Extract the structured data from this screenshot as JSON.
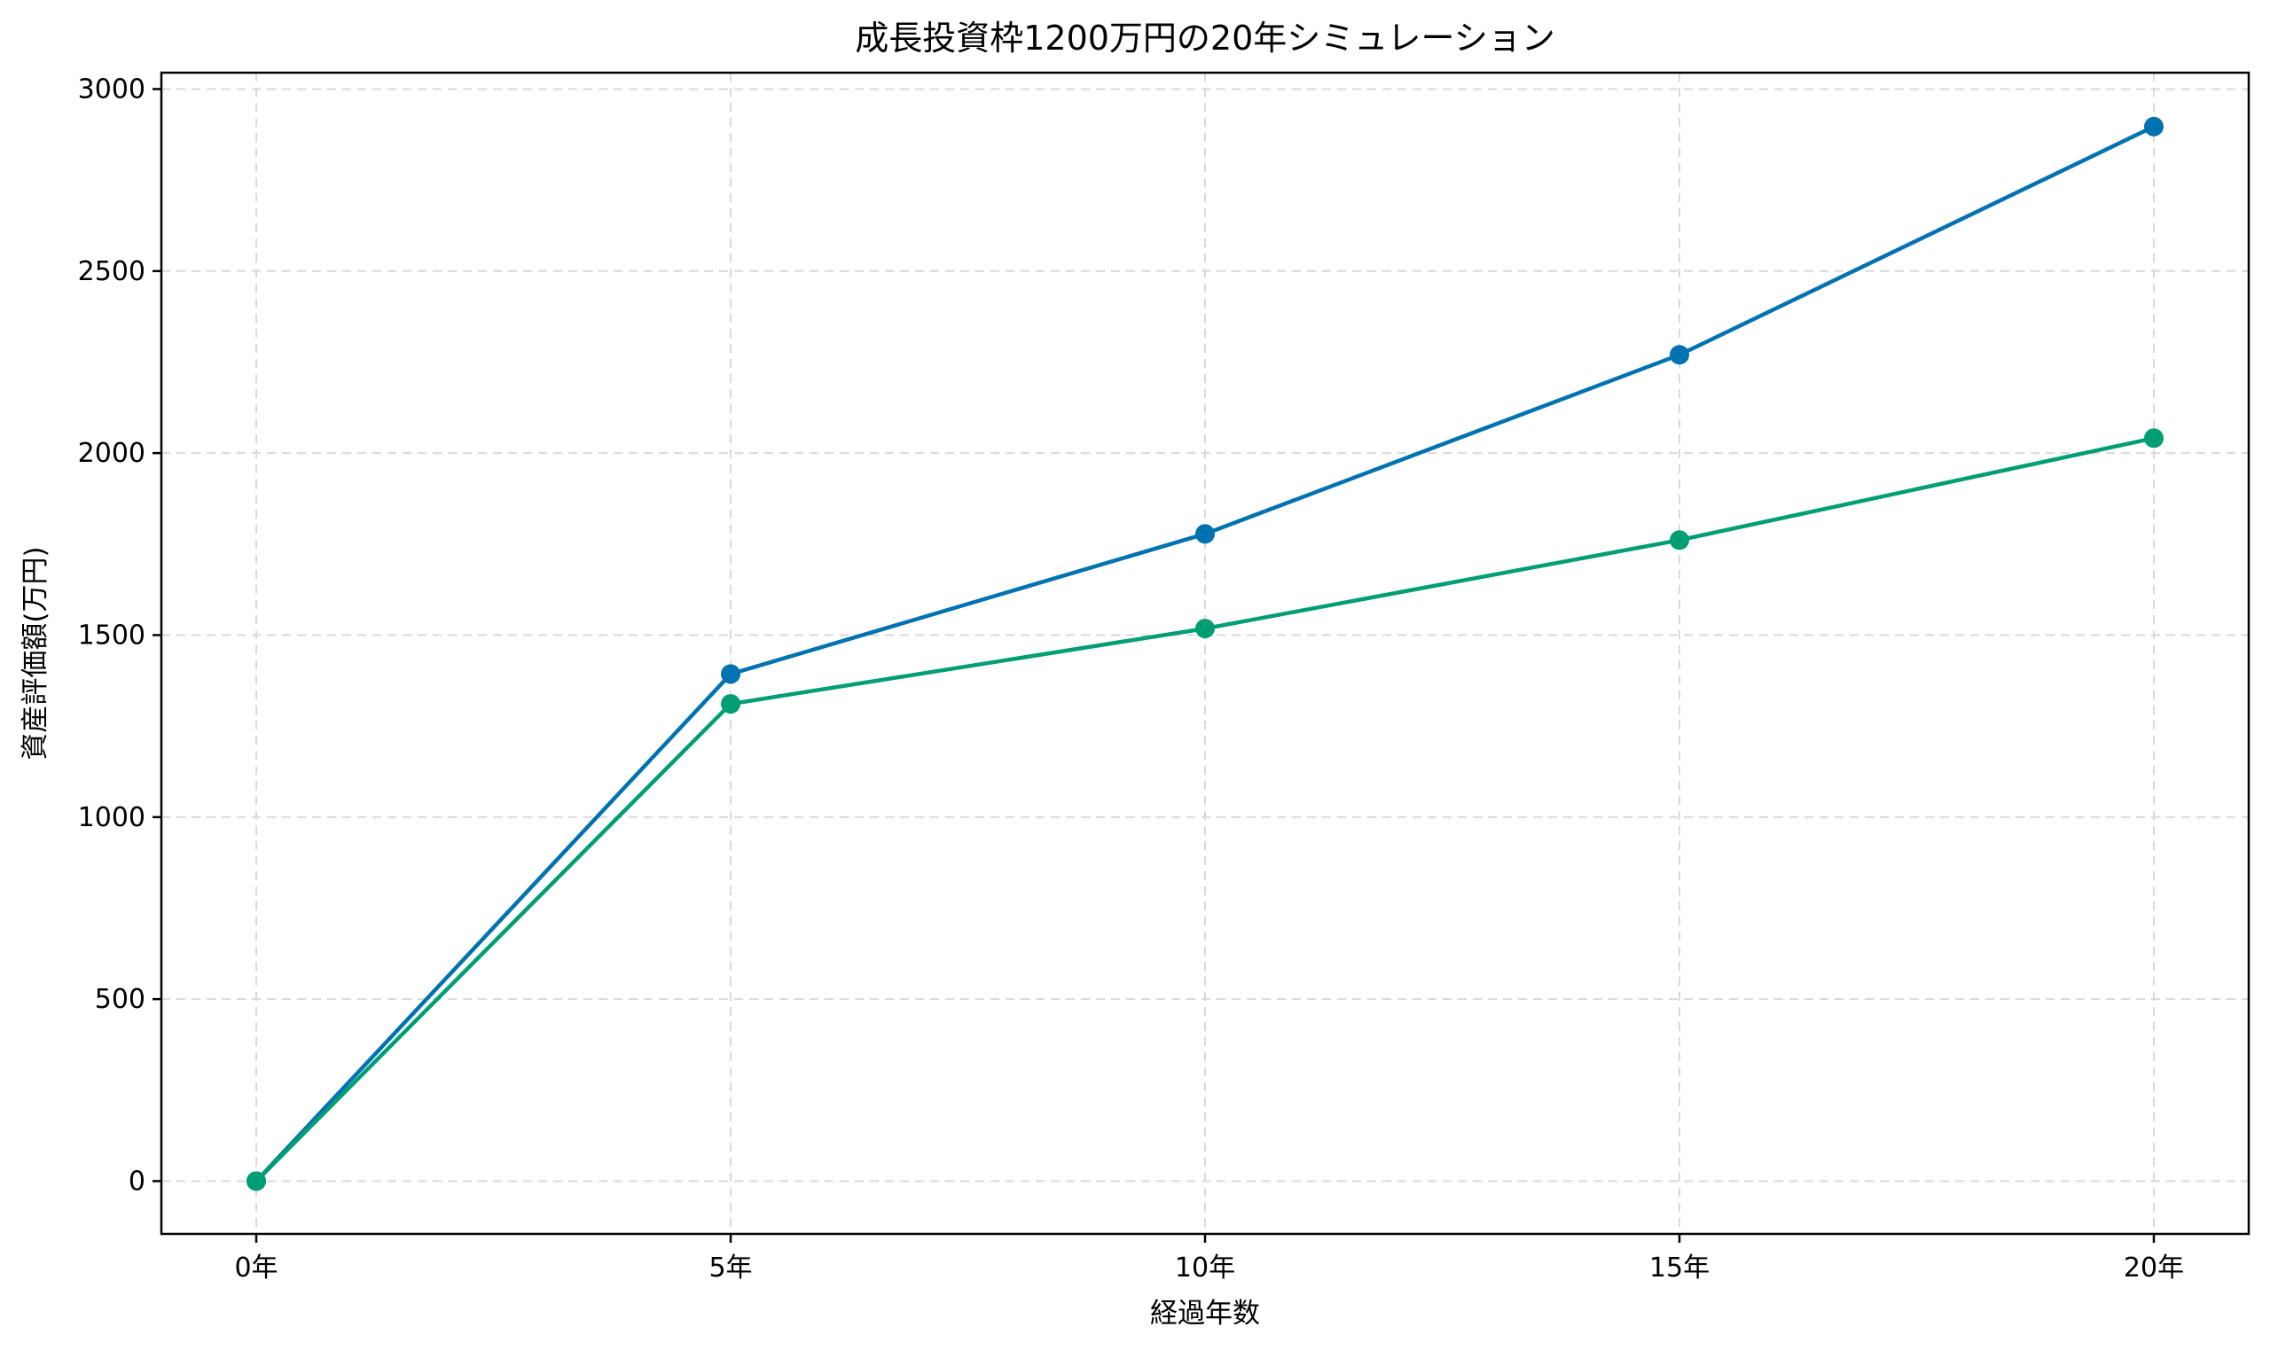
{
  "chart_data": {
    "type": "line",
    "title": "成長投資枠1200万円の20年シミュレーション",
    "xlabel": "経過年数",
    "ylabel": "資産評価額(万円)",
    "categories": [
      "0年",
      "5年",
      "10年",
      "15年",
      "20年"
    ],
    "x": [
      0,
      5,
      10,
      15,
      20
    ],
    "xlim": [
      -1,
      21
    ],
    "ylim": [
      -145,
      3045
    ],
    "y_ticks": [
      0,
      500,
      1000,
      1500,
      2000,
      2500,
      3000
    ],
    "grid": true,
    "marker": "circle",
    "series": [
      {
        "color": "#0072b2",
        "values": [
          0,
          1393,
          1778,
          2270,
          2897
        ]
      },
      {
        "color": "#009e73",
        "values": [
          0,
          1311,
          1518,
          1761,
          2041
        ]
      }
    ]
  }
}
